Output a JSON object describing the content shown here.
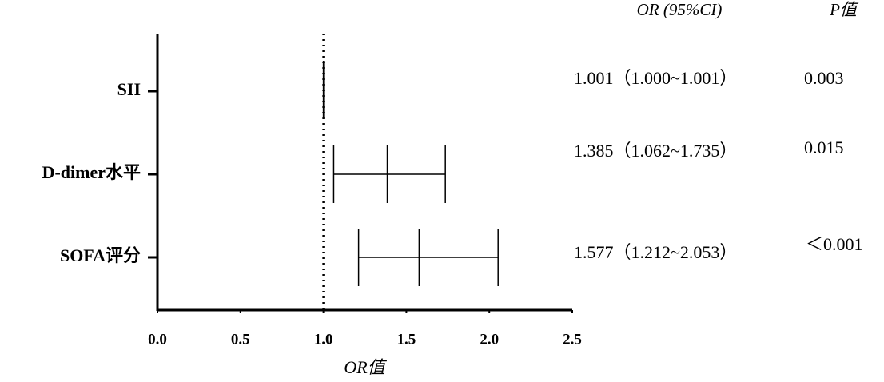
{
  "chart_data": {
    "type": "forest",
    "categories": [
      "SII",
      "D-dimer水平",
      "SOFA评分"
    ],
    "values": [
      1.001,
      1.385,
      1.577
    ],
    "ci_low": [
      1.0,
      1.062,
      1.212
    ],
    "ci_high": [
      1.001,
      1.735,
      2.053
    ],
    "or_header": "OR (95%CI)",
    "p_header": "P值",
    "or_labels": [
      "1.001（1.000~1.001）",
      "1.385（1.062~1.735）",
      "1.577（1.212~2.053）"
    ],
    "p_values": [
      "0.003",
      "0.015",
      "＜0.001"
    ],
    "x_label": "OR值",
    "reference_line": 1,
    "xlim": [
      0,
      2.5
    ],
    "xticks": [
      {
        "value": 0,
        "label": "0.0"
      },
      {
        "value": 0.5,
        "label": "0.5"
      },
      {
        "value": 1,
        "label": "1.0"
      },
      1.5,
      {
        "value": 2,
        "label": "2.0"
      },
      2.5
    ],
    "color": "#000000"
  }
}
